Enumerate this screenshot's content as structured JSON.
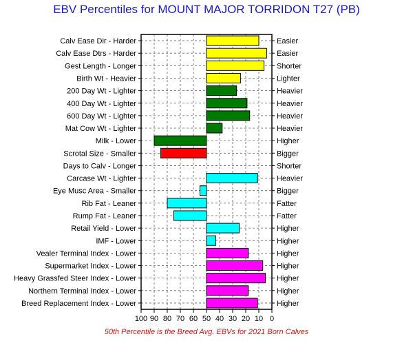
{
  "chart_data": {
    "type": "bar",
    "title": "EBV Percentiles for MOUNT MAJOR TORRIDON T27 (PB)",
    "footnote": "50th Percentile is the Breed Avg. EBVs for 2021 Born Calves",
    "xlim": [
      100,
      0
    ],
    "x_ticks": [
      "100",
      "90",
      "80",
      "70",
      "60",
      "50",
      "40",
      "30",
      "20",
      "10",
      "0"
    ],
    "grid": true,
    "baseline": 50,
    "colors": {
      "yellow": "#ffff00",
      "green": "#007a00",
      "red": "#ff0000",
      "cyan": "#00ffff",
      "magenta": "#ff00ff"
    },
    "bars": [
      {
        "left_label": "Calv Ease Dir - Harder",
        "right_label": "Easier",
        "value": 10,
        "color": "yellow"
      },
      {
        "left_label": "Calv Ease Dtrs - Harder",
        "right_label": "Easier",
        "value": 4,
        "color": "yellow"
      },
      {
        "left_label": "Gest Length - Longer",
        "right_label": "Shorter",
        "value": 6,
        "color": "yellow"
      },
      {
        "left_label": "Birth Wt - Heavier",
        "right_label": "Lighter",
        "value": 24,
        "color": "yellow"
      },
      {
        "left_label": "200 Day Wt - Lighter",
        "right_label": "Heavier",
        "value": 27,
        "color": "green"
      },
      {
        "left_label": "400 Day Wt - Lighter",
        "right_label": "Heavier",
        "value": 19,
        "color": "green"
      },
      {
        "left_label": "600 Day Wt - Lighter",
        "right_label": "Heavier",
        "value": 17,
        "color": "green"
      },
      {
        "left_label": "Mat Cow Wt - Lighter",
        "right_label": "Heavier",
        "value": 38,
        "color": "green"
      },
      {
        "left_label": "Milk - Lower",
        "right_label": "Higher",
        "value": 90,
        "color": "green"
      },
      {
        "left_label": "Scrotal Size - Smaller",
        "right_label": "Bigger",
        "value": 85,
        "color": "red"
      },
      {
        "left_label": "Days to Calv - Longer",
        "right_label": "Shorter",
        "value": 50,
        "color": "none"
      },
      {
        "left_label": "Carcase Wt - Lighter",
        "right_label": "Heavier",
        "value": 11,
        "color": "cyan"
      },
      {
        "left_label": "Eye Musc Area - Smaller",
        "right_label": "Bigger",
        "value": 55,
        "color": "cyan"
      },
      {
        "left_label": "Rib Fat - Leaner",
        "right_label": "Fatter",
        "value": 80,
        "color": "cyan"
      },
      {
        "left_label": "Rump Fat - Leaner",
        "right_label": "Fatter",
        "value": 75,
        "color": "cyan"
      },
      {
        "left_label": "Retail Yield - Lower",
        "right_label": "Higher",
        "value": 25,
        "color": "cyan"
      },
      {
        "left_label": "IMF - Lower",
        "right_label": "Higher",
        "value": 43,
        "color": "cyan"
      },
      {
        "left_label": "Vealer Terminal Index - Lower",
        "right_label": "Higher",
        "value": 18,
        "color": "magenta"
      },
      {
        "left_label": "Supermarket Index - Lower",
        "right_label": "Higher",
        "value": 7,
        "color": "magenta"
      },
      {
        "left_label": "Heavy Grassfed Steer Index - Lower",
        "right_label": "Higher",
        "value": 5,
        "color": "magenta"
      },
      {
        "left_label": "Northern Terminal Index - Lower",
        "right_label": "Higher",
        "value": 18,
        "color": "magenta"
      },
      {
        "left_label": "Breed Replacement Index - Lower",
        "right_label": "Higher",
        "value": 11,
        "color": "magenta"
      }
    ]
  }
}
